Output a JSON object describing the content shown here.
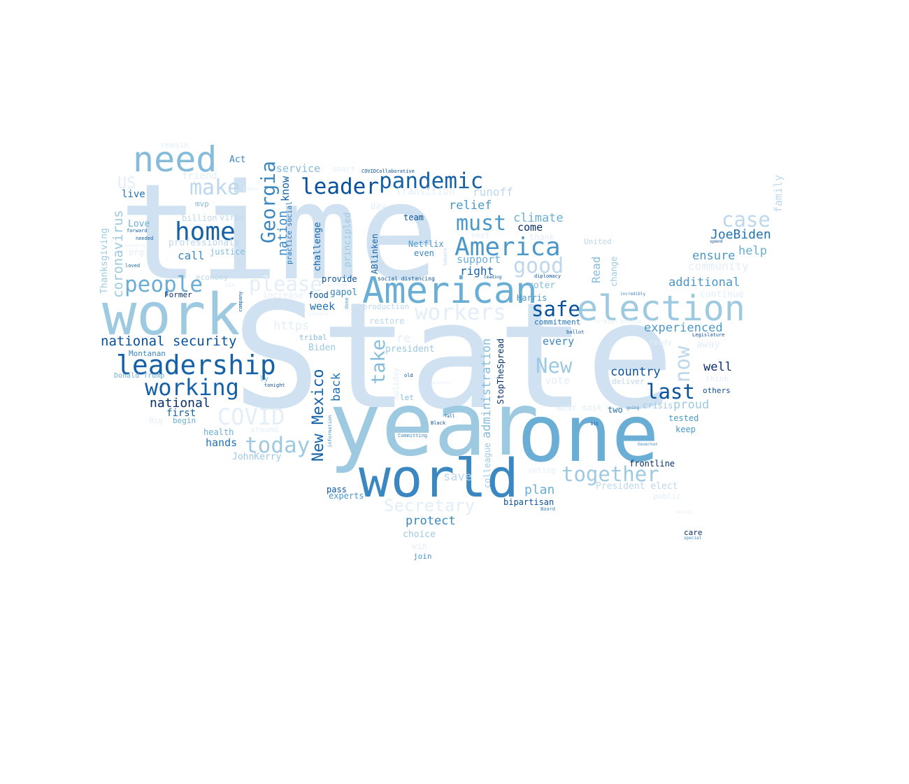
{
  "colors": {
    "c1": "#d0e2f2",
    "c2": "#bdd7ec",
    "c3": "#9dc9e1",
    "c4": "#85bcdc",
    "c5": "#6aaed6",
    "c6": "#4a98c9",
    "c7": "#3a87c1",
    "c8": "#2171b5",
    "c9": "#1561a8",
    "c10": "#08519c",
    "c11": "#08306b",
    "c12": "#e3eef8"
  },
  "words": [
    {
      "text": "State",
      "c": "c1"
    },
    {
      "text": "time",
      "c": "c1"
    },
    {
      "text": "year",
      "c": "c3"
    },
    {
      "text": "one",
      "c": "c5"
    },
    {
      "text": "work",
      "c": "c3"
    },
    {
      "text": "world",
      "c": "c7"
    },
    {
      "text": "American",
      "c": "c5"
    },
    {
      "text": "election",
      "c": "c3"
    },
    {
      "text": "need",
      "c": "c4"
    },
    {
      "text": "leadership",
      "c": "c9"
    },
    {
      "text": "America",
      "c": "c6"
    },
    {
      "text": "home",
      "c": "c9"
    },
    {
      "text": "people",
      "c": "c5"
    },
    {
      "text": "working",
      "c": "c9"
    },
    {
      "text": "pandemic",
      "c": "c9"
    },
    {
      "text": "leader",
      "c": "c10"
    },
    {
      "text": "make",
      "c": "c2"
    },
    {
      "text": "must",
      "c": "c6"
    },
    {
      "text": "good",
      "c": "c2"
    },
    {
      "text": "safe",
      "c": "c10"
    },
    {
      "text": "workers",
      "c": "c12"
    },
    {
      "text": "please",
      "c": "c12"
    },
    {
      "text": "today",
      "c": "c3"
    },
    {
      "text": "together",
      "c": "c3"
    },
    {
      "text": "case",
      "c": "c2"
    },
    {
      "text": "last",
      "c": "c10"
    },
    {
      "text": "New",
      "c": "c3"
    },
    {
      "text": "Secretary",
      "c": "c12"
    },
    {
      "text": "COVID",
      "c": "c12"
    },
    {
      "text": "national security",
      "c": "c10"
    },
    {
      "text": "national",
      "c": "c11"
    },
    {
      "text": "climate",
      "c": "c5"
    },
    {
      "text": "JoeBiden",
      "c": "c8"
    },
    {
      "text": "additional",
      "c": "c6"
    },
    {
      "text": "experienced",
      "c": "c6"
    },
    {
      "text": "ensure",
      "c": "c6"
    },
    {
      "text": "help",
      "c": "c5"
    },
    {
      "text": "country",
      "c": "c10"
    },
    {
      "text": "well",
      "c": "c11"
    },
    {
      "text": "relief",
      "c": "c6"
    },
    {
      "text": "come",
      "c": "c11"
    },
    {
      "text": "support",
      "c": "c5"
    },
    {
      "text": "right",
      "c": "c9"
    },
    {
      "text": "proud",
      "c": "c3"
    },
    {
      "text": "protect",
      "c": "c7"
    },
    {
      "text": "plan",
      "c": "c5"
    },
    {
      "text": "hands",
      "c": "c8"
    },
    {
      "text": "call",
      "c": "c7"
    },
    {
      "text": "service",
      "c": "c4"
    },
    {
      "text": "runoff",
      "c": "c2"
    },
    {
      "text": "transition",
      "c": "c12"
    },
    {
      "text": "community",
      "c": "c12"
    },
    {
      "text": "week",
      "c": "c8"
    },
    {
      "text": "https",
      "c": "c12"
    },
    {
      "text": "re",
      "c": "c12"
    },
    {
      "text": "every",
      "c": "c7"
    },
    {
      "text": "save",
      "c": "c2"
    },
    {
      "text": "voter",
      "c": "c4"
    },
    {
      "text": "first",
      "c": "c9"
    },
    {
      "text": "live",
      "c": "c8"
    },
    {
      "text": "Love",
      "c": "c5"
    },
    {
      "text": "Act",
      "c": "c7"
    },
    {
      "text": "US",
      "c": "c12"
    },
    {
      "text": "friend",
      "c": "c12"
    },
    {
      "text": "mvp",
      "c": "c4"
    },
    {
      "text": "billion",
      "c": "c2"
    },
    {
      "text": "virus",
      "c": "c2"
    },
    {
      "text": "professionals",
      "c": "c2"
    },
    {
      "text": "justice",
      "c": "c4"
    },
    {
      "text": "org",
      "c": "c12"
    },
    {
      "text": "economy",
      "c": "c2"
    },
    {
      "text": "increase",
      "c": "c12"
    },
    {
      "text": "Former",
      "c": "c11"
    },
    {
      "text": "Montanan",
      "c": "c7"
    },
    {
      "text": "Donald Trump",
      "c": "c5"
    },
    {
      "text": "begin",
      "c": "c5"
    },
    {
      "text": "Big",
      "c": "c12"
    },
    {
      "text": "health",
      "c": "c5"
    },
    {
      "text": "JohnKerry",
      "c": "c3"
    },
    {
      "text": "around",
      "c": "c12"
    },
    {
      "text": "pass",
      "c": "c10"
    },
    {
      "text": "experts",
      "c": "c6"
    },
    {
      "text": "provide",
      "c": "c10"
    },
    {
      "text": "gapol",
      "c": "c7"
    },
    {
      "text": "food",
      "c": "c10"
    },
    {
      "text": "tribal",
      "c": "c4"
    },
    {
      "text": "Biden",
      "c": "c3"
    },
    {
      "text": "restore",
      "c": "c2"
    },
    {
      "text": "production",
      "c": "c2"
    },
    {
      "text": "social distancing",
      "c": "c10"
    },
    {
      "text": "president",
      "c": "c3"
    },
    {
      "text": "ly",
      "c": "c4"
    },
    {
      "text": "let",
      "c": "c4"
    },
    {
      "text": "team",
      "c": "c10"
    },
    {
      "text": "Netflix",
      "c": "c6"
    },
    {
      "text": "even",
      "c": "c7"
    },
    {
      "text": "Harris",
      "c": "c6"
    },
    {
      "text": "commitment",
      "c": "c8"
    },
    {
      "text": "smart",
      "c": "c12"
    },
    {
      "text": "day",
      "c": "c12"
    },
    {
      "text": "thank",
      "c": "c12"
    },
    {
      "text": "next",
      "c": "c12"
    },
    {
      "text": "United",
      "c": "c2"
    },
    {
      "text": "vote",
      "c": "c12"
    },
    {
      "text": "deliver",
      "c": "c2"
    },
    {
      "text": "wear mask",
      "c": "c12"
    },
    {
      "text": "two",
      "c": "c8"
    },
    {
      "text": "crisis",
      "c": "c3"
    },
    {
      "text": "tested",
      "c": "c6"
    },
    {
      "text": "keep",
      "c": "c6"
    },
    {
      "text": "frontline",
      "c": "c11"
    },
    {
      "text": "President elect",
      "c": "c2"
    },
    {
      "text": "public",
      "c": "c12"
    },
    {
      "text": "bipartisan",
      "c": "c10"
    },
    {
      "text": "voting",
      "c": "c12"
    },
    {
      "text": "choice",
      "c": "c3"
    },
    {
      "text": "win",
      "c": "c12"
    },
    {
      "text": "join",
      "c": "c6"
    },
    {
      "text": "care",
      "c": "c11"
    },
    {
      "text": "others",
      "c": "c10"
    },
    {
      "text": "continue",
      "c": "c12"
    },
    {
      "text": "away",
      "c": "c12"
    },
    {
      "text": "ready",
      "c": "c12"
    },
    {
      "text": "think",
      "c": "c12"
    },
    {
      "text": "remain",
      "c": "c12"
    },
    {
      "text": "COVIDCollaborative",
      "c": "c10"
    },
    {
      "text": "forward",
      "c": "c9"
    },
    {
      "text": "needed",
      "c": "c9"
    },
    {
      "text": "loved",
      "c": "c9"
    },
    {
      "text": "solutions",
      "c": "c12"
    },
    {
      "text": "studio",
      "c": "c12"
    },
    {
      "text": "GSA",
      "c": "c12"
    },
    {
      "text": "package",
      "c": "c12"
    },
    {
      "text": "presence",
      "c": "c12"
    },
    {
      "text": "tonight",
      "c": "c10"
    },
    {
      "text": "old",
      "c": "c10"
    },
    {
      "text": "economic",
      "c": "c12"
    },
    {
      "text": "Tell",
      "c": "c10"
    },
    {
      "text": "Black",
      "c": "c10"
    },
    {
      "text": "Committing",
      "c": "c7"
    },
    {
      "text": "leading",
      "c": "c10"
    },
    {
      "text": "diplomacy",
      "c": "c10"
    },
    {
      "text": "ballot",
      "c": "c10"
    },
    {
      "text": "foreign policy",
      "c": "c12"
    },
    {
      "text": "incredibly",
      "c": "c7"
    },
    {
      "text": "Legislature",
      "c": "c10"
    },
    {
      "text": "spend",
      "c": "c10"
    },
    {
      "text": "going",
      "c": "c7"
    },
    {
      "text": "bit",
      "c": "c10"
    },
    {
      "text": "Governor",
      "c": "c7"
    },
    {
      "text": "Board",
      "c": "c7"
    },
    {
      "text": "special",
      "c": "c7"
    },
    {
      "text": "making",
      "c": "c12"
    },
    {
      "text": "Georgia",
      "c": "c7",
      "v": true
    },
    {
      "text": "nation",
      "c": "c7",
      "v": true
    },
    {
      "text": "know",
      "c": "c9",
      "v": true
    },
    {
      "text": "practice social",
      "c": "c8",
      "v": true
    },
    {
      "text": "challenge",
      "c": "c9",
      "v": true
    },
    {
      "text": "principled",
      "c": "c3",
      "v": true
    },
    {
      "text": "ABlinken",
      "c": "c9",
      "v": true
    },
    {
      "text": "coronavirus",
      "c": "c3",
      "v": true
    },
    {
      "text": "Thanksgiving",
      "c": "c3",
      "v": true
    },
    {
      "text": "New Mexico",
      "c": "c9",
      "v": true
    },
    {
      "text": "back",
      "c": "c8",
      "v": true
    },
    {
      "text": "take",
      "c": "c4",
      "v": true
    },
    {
      "text": "administration",
      "c": "c4",
      "v": true
    },
    {
      "text": "colleague",
      "c": "c3",
      "v": true
    },
    {
      "text": "StopTheSpread",
      "c": "c11",
      "v": true
    },
    {
      "text": "now",
      "c": "c2",
      "v": true
    },
    {
      "text": "Read",
      "c": "c4",
      "v": true
    },
    {
      "text": "change",
      "c": "c3",
      "v": true
    },
    {
      "text": "family",
      "c": "c2",
      "v": true
    },
    {
      "text": "information",
      "c": "c6",
      "v": true
    },
    {
      "text": "done",
      "c": "c6",
      "v": true
    },
    {
      "text": "Senate",
      "c": "c2",
      "v": true
    },
    {
      "text": "holiday",
      "c": "c12",
      "v": true
    },
    {
      "text": "company",
      "c": "c10",
      "v": true
    }
  ]
}
